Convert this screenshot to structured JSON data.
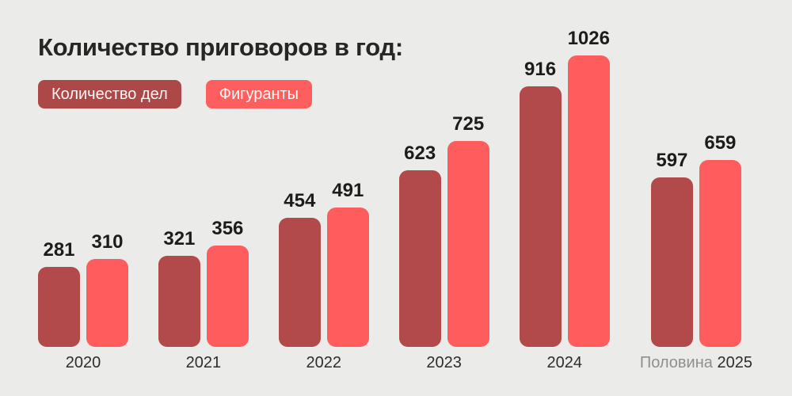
{
  "title": "Количество приговоров в год:",
  "legend": [
    {
      "label": "Количество дел",
      "color": "#ac4848"
    },
    {
      "label": "Фигуранты",
      "color": "#ff5e5e"
    }
  ],
  "colors": {
    "background": "#ebebe9",
    "series_cases": "#b2494a",
    "series_defendants": "#ff5c5d",
    "text": "#1c1c1c",
    "muted_label": "#8f8f8f"
  },
  "chart_data": {
    "type": "bar",
    "title": "Количество приговоров в год:",
    "categories": [
      "2020",
      "2021",
      "2022",
      "2023",
      "2024",
      "Половина 2025"
    ],
    "series": [
      {
        "name": "Количество дел",
        "color": "#b2494a",
        "values": [
          281,
          321,
          454,
          623,
          916,
          597
        ]
      },
      {
        "name": "Фигуранты",
        "color": "#ff5c5d",
        "values": [
          310,
          356,
          491,
          725,
          1026,
          659
        ]
      }
    ],
    "ylim": [
      0,
      1026
    ],
    "grid": false,
    "legend_position": "top-left",
    "value_labels": "above-bars"
  }
}
